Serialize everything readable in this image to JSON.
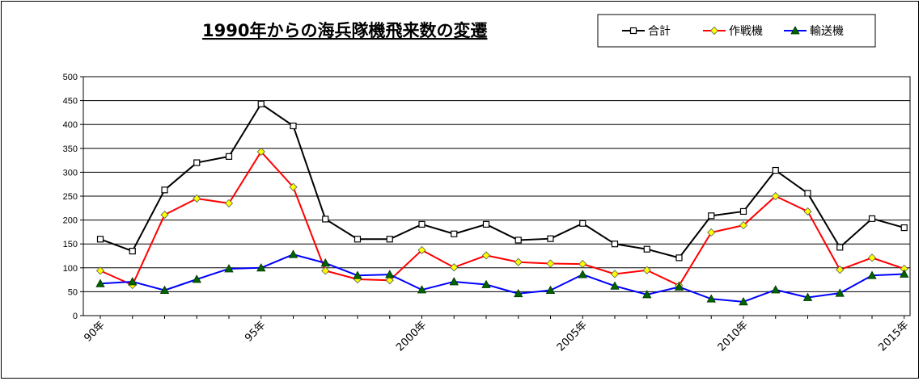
{
  "chart_data": {
    "type": "line",
    "title": "1990年からの海兵隊機飛来数の変遷",
    "xlabel": "",
    "ylabel": "",
    "ylim": [
      0,
      500
    ],
    "y_ticks": [
      0,
      50,
      100,
      150,
      200,
      250,
      300,
      350,
      400,
      450,
      500
    ],
    "grid": true,
    "legend_position": "top-right",
    "x": [
      1990,
      1991,
      1992,
      1993,
      1994,
      1995,
      1996,
      1997,
      1998,
      1999,
      2000,
      2001,
      2002,
      2003,
      2004,
      2005,
      2006,
      2007,
      2008,
      2009,
      2010,
      2011,
      2012,
      2013,
      2014,
      2015
    ],
    "x_tick_labels": [
      {
        "x": 1990,
        "label": "90年"
      },
      {
        "x": 1995,
        "label": "95年"
      },
      {
        "x": 2000,
        "label": "2000年"
      },
      {
        "x": 2005,
        "label": "2005年"
      },
      {
        "x": 2010,
        "label": "2010年"
      },
      {
        "x": 2015,
        "label": "2015年"
      }
    ],
    "series": [
      {
        "name": "合計",
        "color": "#000000",
        "marker": "square",
        "values": [
          160,
          135,
          263,
          320,
          333,
          443,
          397,
          202,
          160,
          160,
          191,
          171,
          191,
          158,
          161,
          193,
          150,
          139,
          121,
          209,
          218,
          304,
          256,
          143,
          203,
          184
        ]
      },
      {
        "name": "作戦機",
        "color": "#ff0000",
        "marker": "diamond",
        "marker_fill": "#ffff00",
        "values": [
          94,
          64,
          211,
          245,
          235,
          343,
          269,
          94,
          76,
          74,
          137,
          101,
          126,
          112,
          109,
          108,
          87,
          95,
          63,
          174,
          189,
          250,
          218,
          96,
          121,
          98
        ]
      },
      {
        "name": "輸送機",
        "color": "#0000ff",
        "marker": "triangle",
        "marker_fill": "#006400",
        "values": [
          67,
          71,
          53,
          76,
          98,
          100,
          128,
          110,
          84,
          86,
          54,
          71,
          65,
          46,
          53,
          86,
          62,
          44,
          60,
          35,
          29,
          54,
          38,
          47,
          84,
          87
        ]
      }
    ]
  }
}
